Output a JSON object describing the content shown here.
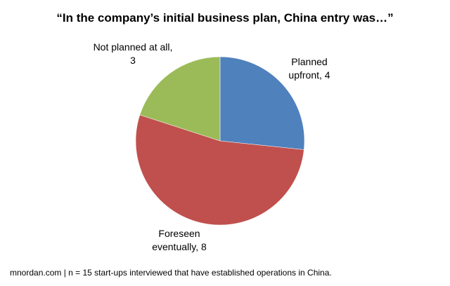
{
  "chart_data": {
    "type": "pie",
    "title": "“In the company’s initial business plan, China entry was…”",
    "values": [
      4,
      8,
      3
    ],
    "value_labels": [
      "Planned upfront, 4",
      "Foreseen eventually, 8",
      "Not planned at all, 3"
    ],
    "colors": [
      "#4f81bd",
      "#c0504d",
      "#9bbb59"
    ],
    "footnote": "mnordan.com | n = 15 start-ups interviewed that have established operations in China."
  }
}
